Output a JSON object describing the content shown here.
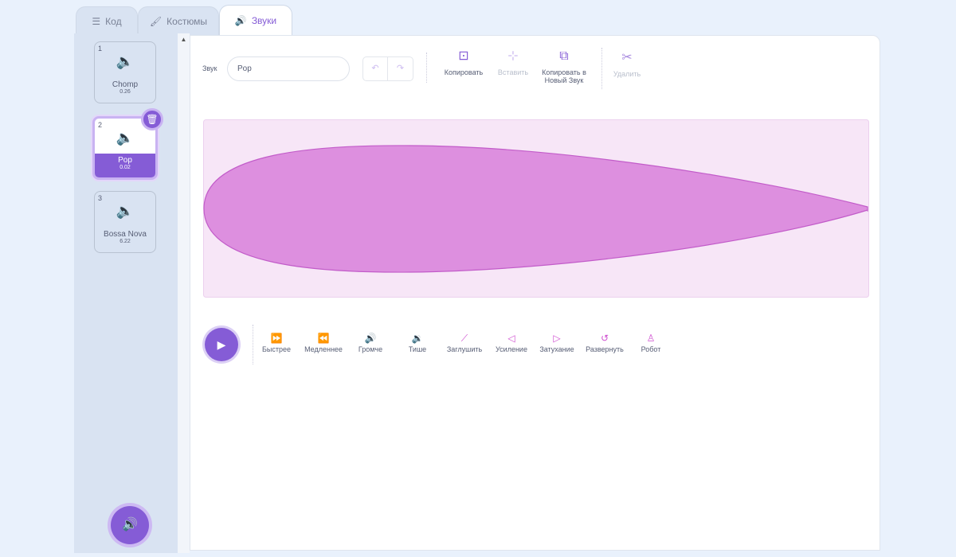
{
  "tabs": [
    {
      "label": "Код",
      "icon": "code-icon"
    },
    {
      "label": "Костюмы",
      "icon": "brush-icon"
    },
    {
      "label": "Звуки",
      "icon": "speaker-icon",
      "active": true
    }
  ],
  "sounds": [
    {
      "index": "1",
      "name": "Chomp",
      "duration": "0.26"
    },
    {
      "index": "2",
      "name": "Pop",
      "duration": "0.02",
      "selected": true
    },
    {
      "index": "3",
      "name": "Bossa Nova",
      "duration": "6.22"
    }
  ],
  "editor": {
    "sound_label": "Звук",
    "sound_name": "Pop",
    "tools": {
      "copy": "Копировать",
      "paste": "Вставить",
      "copy_new_1": "Копировать в",
      "copy_new_2": "Новый Звук",
      "delete": "Удалить"
    }
  },
  "effects": [
    "Быстрее",
    "Медленнее",
    "Громче",
    "Тише",
    "Заглушить",
    "Усиление",
    "Затухание",
    "Развернуть",
    "Робот"
  ],
  "colors": {
    "accent": "#855cd6",
    "waveform": "#dd8fdf",
    "effect": "#cf4fd0"
  }
}
